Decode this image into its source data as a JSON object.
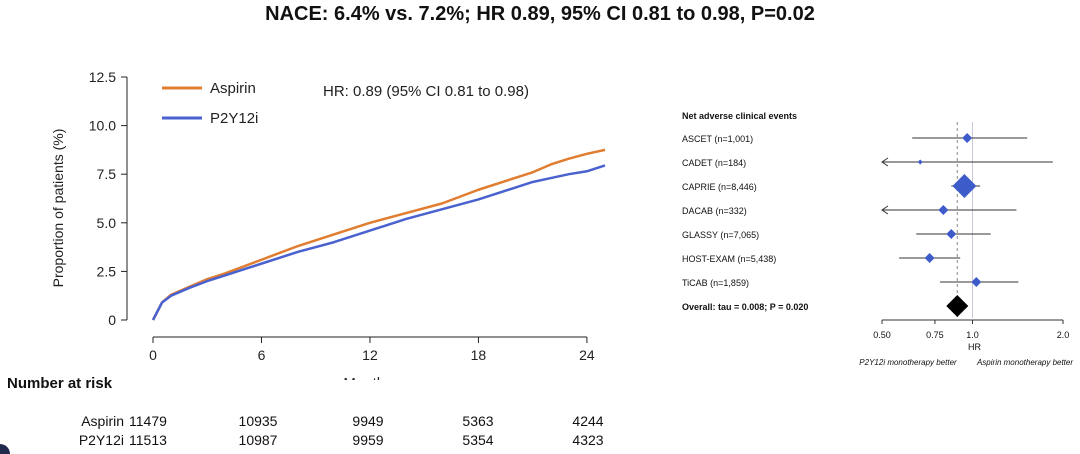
{
  "title": "NACE: 6.4% vs. 7.2%; HR 0.89, 95% CI 0.81 to 0.98, P=0.02",
  "colors": {
    "aspirin": "#e07d30",
    "p2y12i": "#4a62cf",
    "forest_marker": "#3d5bc9",
    "overall": "#000000"
  },
  "chart_data": [
    {
      "type": "line",
      "title": "",
      "annotation": "HR: 0.89 (95% CI 0.81 to 0.98)",
      "xlabel": "Months",
      "ylabel": "Proportion of patients (%)",
      "xlim": [
        0,
        25
      ],
      "ylim": [
        0,
        12.5
      ],
      "xticks": [
        "0",
        "6",
        "12",
        "18",
        "24"
      ],
      "yticks": [
        "0",
        "2.5",
        "5.0",
        "7.5",
        "10.0",
        "12.5"
      ],
      "legend_position": "top-left",
      "series": [
        {
          "name": "Aspirin",
          "x": [
            0,
            0.5,
            1,
            2,
            3,
            4,
            6,
            8,
            10,
            12,
            14,
            16,
            18,
            20,
            21,
            22,
            23,
            24,
            25
          ],
          "y": [
            0,
            0.9,
            1.3,
            1.7,
            2.1,
            2.4,
            3.1,
            3.8,
            4.4,
            5.0,
            5.5,
            6.0,
            6.7,
            7.3,
            7.6,
            8.0,
            8.3,
            8.55,
            8.75
          ]
        },
        {
          "name": "P2Y12i",
          "x": [
            0,
            0.5,
            1,
            2,
            3,
            4,
            6,
            8,
            10,
            12,
            14,
            16,
            18,
            20,
            21,
            22,
            23,
            24,
            25
          ],
          "y": [
            0,
            0.9,
            1.25,
            1.65,
            2.0,
            2.3,
            2.9,
            3.5,
            4.0,
            4.6,
            5.2,
            5.7,
            6.2,
            6.8,
            7.1,
            7.3,
            7.5,
            7.65,
            7.95
          ]
        }
      ]
    },
    {
      "type": "scatter",
      "subtype": "forest",
      "header": "Net adverse clinical events",
      "xlabel": "HR",
      "xscale": "log",
      "xlim": [
        0.5,
        2.0
      ],
      "xticks": [
        "0.50",
        "0.75",
        "1.0",
        "2.0"
      ],
      "left_label": "P2Y12i monotherapy better",
      "right_label": "Aspirin monotherapy better",
      "studies": [
        {
          "label": "ASCET (n=1,001)",
          "hr": 0.96,
          "lo": 0.63,
          "hi": 1.52,
          "left_arrow": false
        },
        {
          "label": "CADET (n=184)",
          "hr": 0.67,
          "lo": 0.5,
          "hi": 1.85,
          "left_arrow": true
        },
        {
          "label": "CAPRIE (n=8,446)",
          "hr": 0.94,
          "lo": 0.85,
          "hi": 1.06,
          "left_arrow": false
        },
        {
          "label": "DACAB (n=332)",
          "hr": 0.8,
          "lo": 0.5,
          "hi": 1.4,
          "left_arrow": true
        },
        {
          "label": "GLASSY (n=7,065)",
          "hr": 0.85,
          "lo": 0.65,
          "hi": 1.15,
          "left_arrow": false
        },
        {
          "label": "HOST-EXAM (n=5,438)",
          "hr": 0.72,
          "lo": 0.57,
          "hi": 0.91,
          "left_arrow": false
        },
        {
          "label": "TiCAB (n=1,859)",
          "hr": 1.03,
          "lo": 0.78,
          "hi": 1.42,
          "left_arrow": false
        }
      ],
      "overall": {
        "label": "Overall: tau = 0.008; P = 0.020",
        "hr": 0.89,
        "lo": 0.81,
        "hi": 0.98
      }
    }
  ],
  "risk_table": {
    "header": "Number at risk",
    "columns": [
      "0",
      "6",
      "12",
      "18",
      "24"
    ],
    "rows": [
      {
        "label": "Aspirin",
        "values": [
          "11479",
          "10935",
          "9949",
          "5363",
          "4244"
        ]
      },
      {
        "label": "P2Y12i",
        "values": [
          "11513",
          "10987",
          "9959",
          "5354",
          "4323"
        ]
      }
    ]
  }
}
